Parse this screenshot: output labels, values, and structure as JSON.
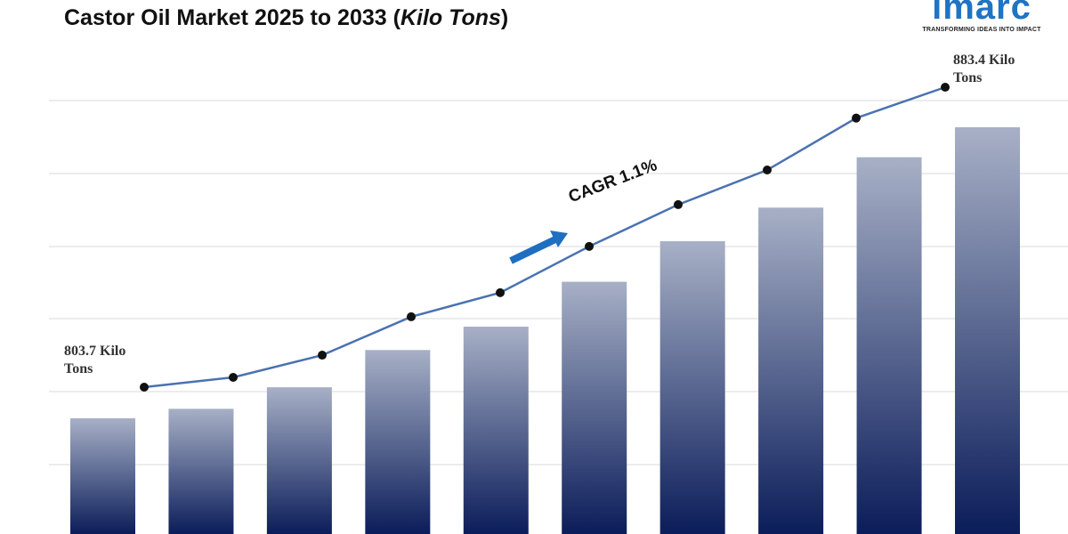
{
  "chart_data": {
    "type": "bar-line",
    "title_parts": [
      "Castor Oil Market 2025 to 2033 (",
      "Kilo Tons",
      ")"
    ],
    "logo": {
      "name": "imarc",
      "tagline": "TRANSFORMING IDEAS INTO IMPACT"
    },
    "annotation": "CAGR  1.1%",
    "categories": [
      null,
      null,
      null,
      null,
      null,
      null,
      null,
      null,
      null,
      null
    ],
    "values": [
      803.7,
      806.3,
      812.2,
      822.4,
      828.8,
      841.1,
      852.2,
      861.4,
      875.2,
      883.4
    ],
    "value_labels": [
      "803.7 Kilo Tons",
      null,
      null,
      null,
      null,
      null,
      null,
      null,
      null,
      "883.4 Kilo Tons"
    ],
    "bar_color": [
      "#a7b0c6",
      "#0b1d5a"
    ],
    "line_color": "#4a72b0",
    "marker_color": "#111111"
  }
}
